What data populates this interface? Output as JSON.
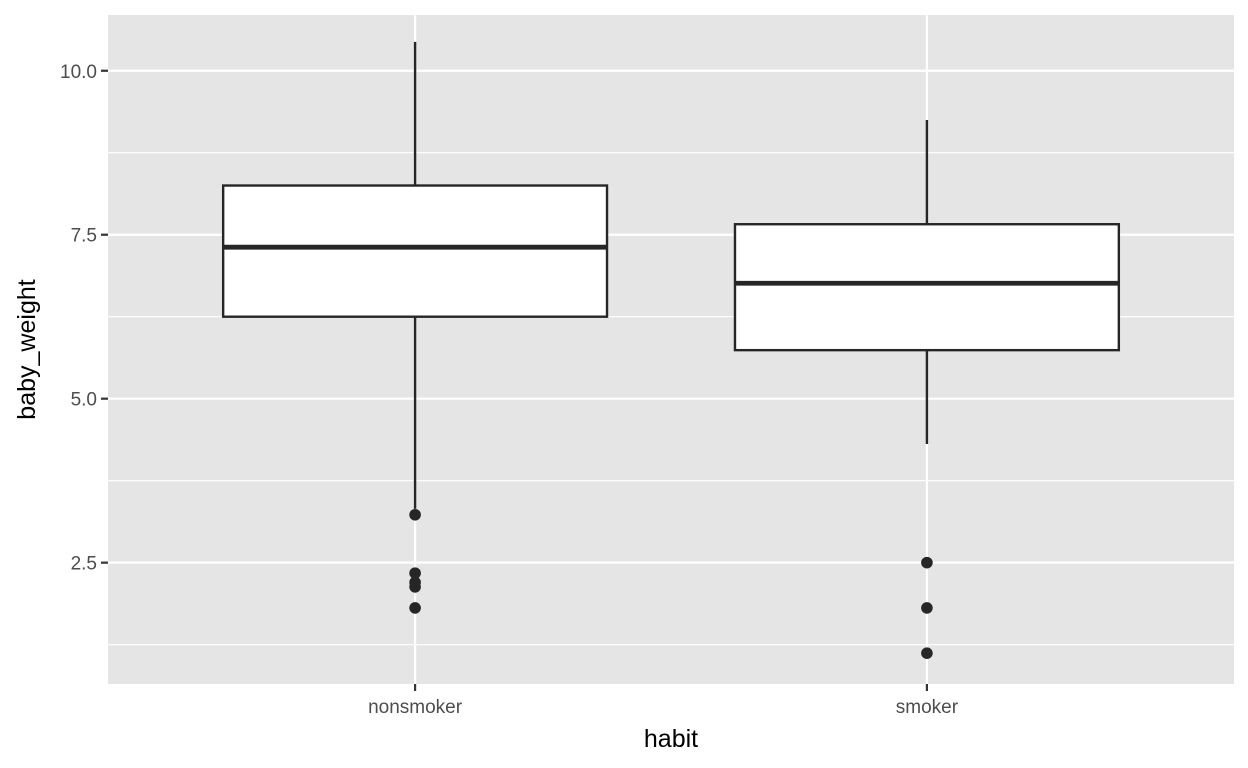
{
  "chart_data": {
    "type": "boxplot",
    "title": "",
    "xlabel": "habit",
    "ylabel": "baby_weight",
    "ylim": [
      0.65,
      10.85
    ],
    "y_ticks": [
      2.5,
      5.0,
      7.5,
      10.0
    ],
    "y_tick_labels": [
      "2.5",
      "5.0",
      "7.5",
      "10.0"
    ],
    "grid": true,
    "legend": "none",
    "colors": {
      "panel": "#e5e5e5",
      "grid": "#ffffff",
      "box_fill": "#ffffff",
      "stroke": "#262626",
      "tick_label": "#4d4d4d",
      "axis_title": "#000000"
    },
    "categories": [
      "nonsmoker",
      "smoker"
    ],
    "boxes": [
      {
        "category": "nonsmoker",
        "whisker_low": 3.32,
        "q1": 6.25,
        "median": 7.31,
        "q3": 8.25,
        "whisker_high": 10.44,
        "outliers": [
          3.23,
          2.34,
          2.2,
          2.13,
          1.81
        ]
      },
      {
        "category": "smoker",
        "whisker_low": 4.31,
        "q1": 5.74,
        "median": 6.76,
        "q3": 7.66,
        "whisker_high": 9.25,
        "outliers": [
          2.5,
          1.81,
          1.12
        ]
      }
    ]
  }
}
